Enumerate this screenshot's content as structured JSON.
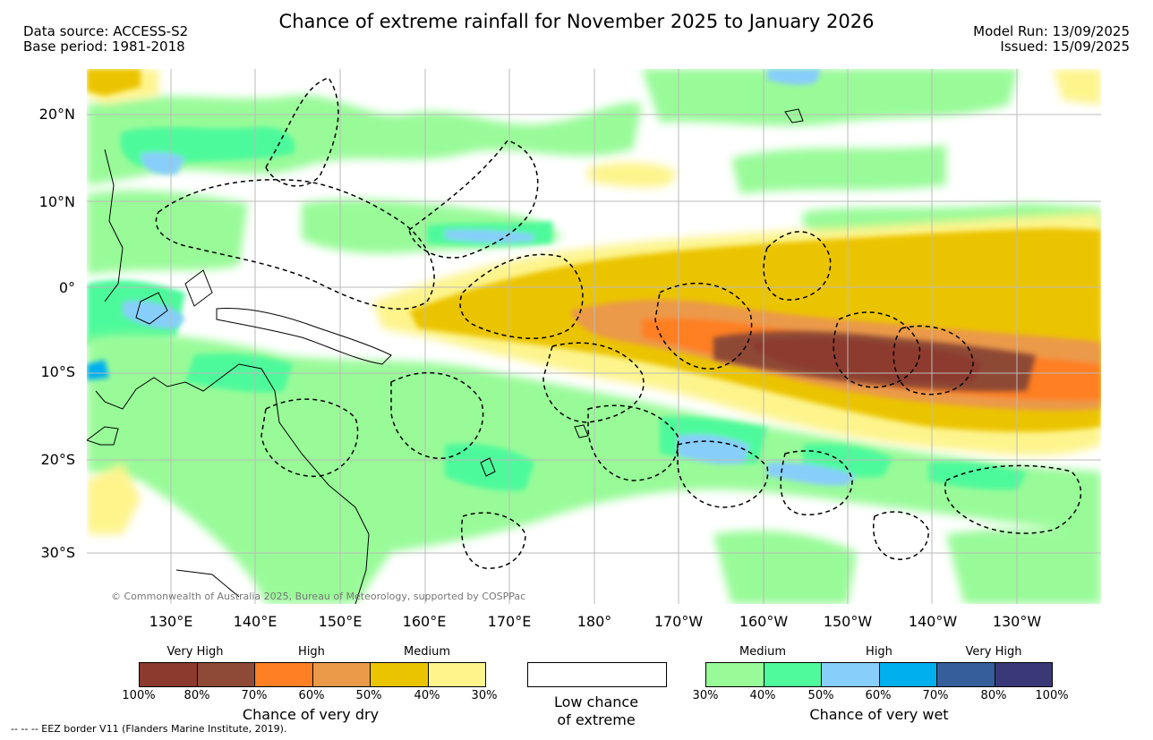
{
  "header": {
    "title": "Chance of extreme rainfall for November 2025 to January 2026",
    "left_lines": [
      "Data source: ACCESS-S2",
      "Base period: 1981-2018"
    ],
    "right_lines": [
      "Model Run: 13/09/2025",
      "Issued: 15/09/2025"
    ]
  },
  "map": {
    "lat_labels": [
      "20°N",
      "10°N",
      "0°",
      "10°S",
      "20°S",
      "30°S"
    ],
    "lon_labels": [
      "130°E",
      "140°E",
      "150°E",
      "160°E",
      "170°E",
      "180°",
      "170°W",
      "160°W",
      "150°W",
      "140°W",
      "130°W"
    ],
    "copyright": "© Commonwealth of Australia 2025, Bureau of Meteorology, supported by COSPPac"
  },
  "legend": {
    "dry": {
      "categories": [
        "Very High",
        "High",
        "Medium"
      ],
      "ticks": [
        "100%",
        "80%",
        "70%",
        "60%",
        "50%",
        "40%",
        "30%"
      ],
      "colors": [
        "#8c3a2e",
        "#8e4a36",
        "#ff7f24",
        "#eb9a4a",
        "#ebc400",
        "#fdf48c"
      ],
      "caption": "Chance of very dry"
    },
    "neutral": {
      "caption_line1": "Low chance",
      "caption_line2": "of extreme"
    },
    "wet": {
      "categories": [
        "Medium",
        "High",
        "Very High"
      ],
      "ticks": [
        "30%",
        "40%",
        "50%",
        "60%",
        "70%",
        "80%",
        "100%"
      ],
      "colors": [
        "#98fb98",
        "#4efa9b",
        "#87cefa",
        "#00afee",
        "#355e9a",
        "#3b3878"
      ],
      "caption": "Chance of very wet"
    }
  },
  "footer": "--  --  -- EEZ border V11 (Flanders Marine Institute, 2019)."
}
